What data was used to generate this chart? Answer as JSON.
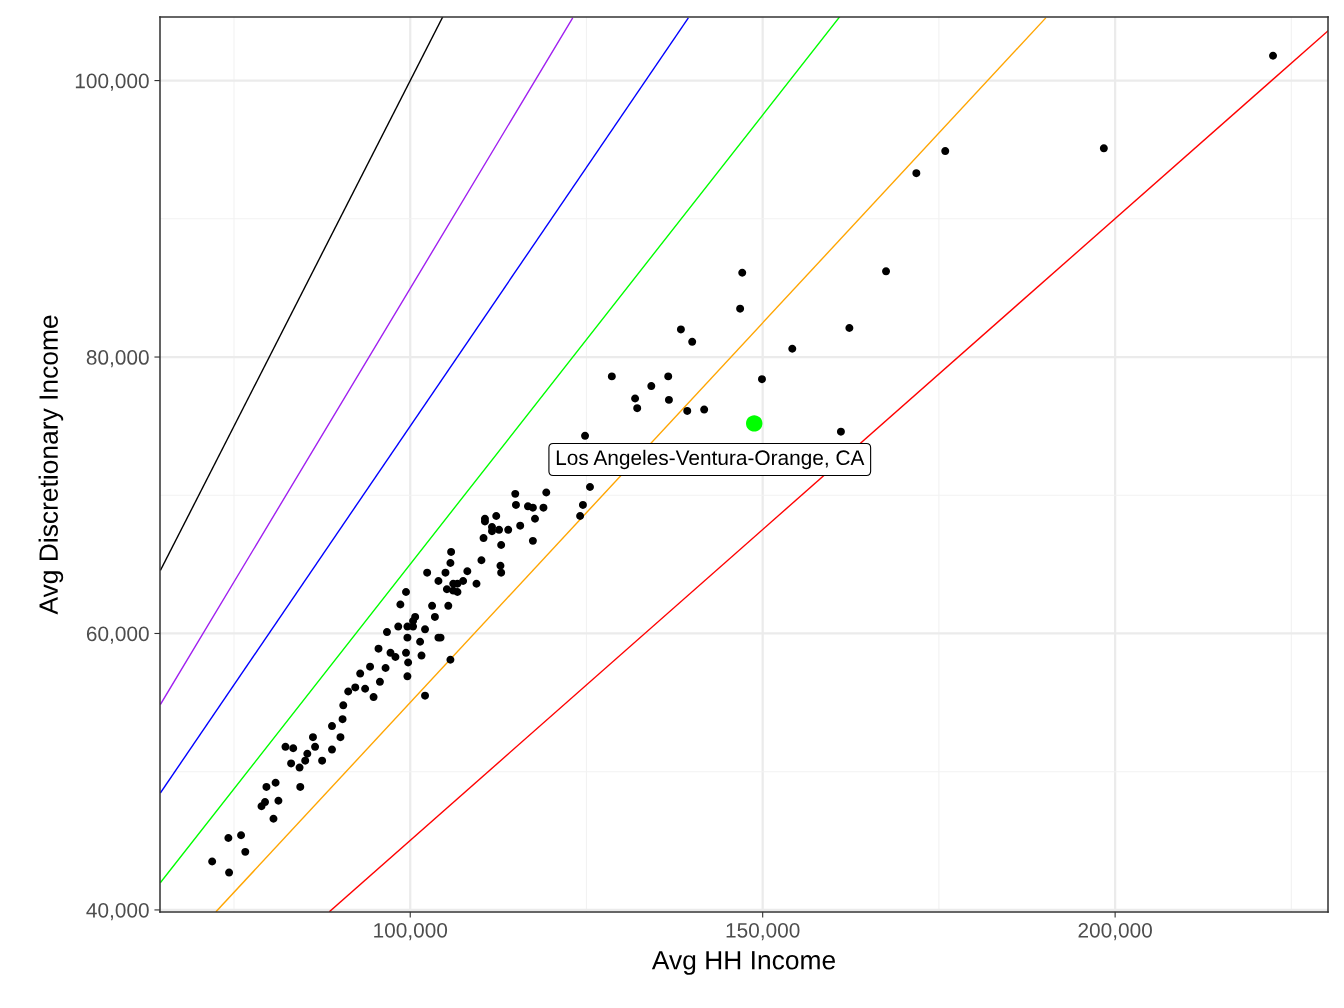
{
  "chart_data": {
    "type": "scatter",
    "xlabel": "Avg HH Income",
    "ylabel": "Avg Discretionary Income",
    "xlim": [
      64500,
      230200
    ],
    "ylim": [
      39850,
      104600
    ],
    "xticks": [
      {
        "value": 100000,
        "label": "100,000"
      },
      {
        "value": 150000,
        "label": "150,000"
      },
      {
        "value": 200000,
        "label": "200,000"
      }
    ],
    "yticks": [
      {
        "value": 40000,
        "label": "40,000"
      },
      {
        "value": 60000,
        "label": "60,000"
      },
      {
        "value": 80000,
        "label": "80,000"
      },
      {
        "value": 100000,
        "label": "100,000"
      }
    ],
    "grid": true,
    "series": [
      {
        "type": "line",
        "color": "#000000",
        "x": [
          64600,
          104600
        ],
        "values": [
          64600,
          104600
        ]
      },
      {
        "type": "line",
        "color": "#a020f0",
        "x": [
          64600,
          123000
        ],
        "values": [
          54900,
          104500
        ]
      },
      {
        "type": "line",
        "color": "#0000ff",
        "x": [
          64600,
          139400
        ],
        "values": [
          48500,
          104500
        ]
      },
      {
        "type": "line",
        "color": "#00ff00",
        "x": [
          64600,
          160900
        ],
        "values": [
          42000,
          104600
        ]
      },
      {
        "type": "line",
        "color": "#ffa500",
        "x": [
          72500,
          190100
        ],
        "values": [
          39900,
          104500
        ]
      },
      {
        "type": "line",
        "color": "#ff0000",
        "x": [
          88600,
          230200
        ],
        "values": [
          39900,
          103600
        ]
      },
      {
        "color": "#000000",
        "marker": "circle",
        "x": [
          71900,
          74300,
          74200,
          76000,
          76600,
          80600,
          81300,
          78900,
          79400,
          79600,
          80900,
          84400,
          82300,
          83400,
          83100,
          84300,
          85100,
          85400,
          86200,
          86500,
          87500,
          88900,
          88900,
          90400,
          90100,
          90500,
          91200,
          92200,
          92900,
          94300,
          93600,
          94800,
          95700,
          96500,
          95500,
          97200,
          97900,
          96700,
          98300,
          99600,
          99400,
          99700,
          99600,
          101400,
          101600,
          102100,
          102100,
          104000,
          100400,
          98600,
          99400,
          100700,
          99600,
          100400,
          103100,
          103500,
          102400,
          104000,
          105200,
          105400,
          104300,
          105700,
          105000,
          105700,
          105800,
          106700,
          107500,
          108100,
          109400,
          110100,
          110400,
          111600,
          110600,
          124800,
          114900,
          115000,
          119300,
          125500,
          124500,
          124100,
          116700,
          117400,
          118900,
          117700,
          115600,
          110600,
          112200,
          111600,
          112600,
          113900,
          112900,
          117400,
          106100,
          112800,
          112900,
          106100,
          106700,
          147100,
          146800,
          138400,
          140000,
          154200,
          162300,
          128600,
          134200,
          136600,
          131900,
          132200,
          136700,
          139300,
          141700,
          149900,
          161100,
          167500,
          171800,
          175900,
          198400,
          222400
        ],
        "values": [
          43500,
          42700,
          45200,
          45400,
          44200,
          46600,
          47900,
          47500,
          47800,
          48900,
          49200,
          48900,
          51800,
          51700,
          50600,
          50300,
          50800,
          51300,
          52500,
          51800,
          50800,
          51600,
          53300,
          53800,
          52500,
          54800,
          55800,
          56100,
          57100,
          57600,
          56000,
          55400,
          56500,
          57500,
          58900,
          58600,
          58300,
          60100,
          60500,
          59700,
          58600,
          57900,
          56900,
          59400,
          58400,
          55500,
          60300,
          59700,
          60900,
          62100,
          63000,
          61200,
          60500,
          60500,
          62000,
          61200,
          64400,
          63800,
          63200,
          62000,
          59700,
          58100,
          64400,
          65100,
          65900,
          63600,
          63800,
          64500,
          63600,
          65300,
          66900,
          67400,
          68100,
          74300,
          70100,
          69300,
          70200,
          70600,
          69300,
          68500,
          69200,
          69100,
          69100,
          68300,
          67800,
          68300,
          68500,
          67700,
          67500,
          67500,
          66400,
          66700,
          63600,
          64900,
          64400,
          63100,
          63000,
          86100,
          83500,
          82000,
          81100,
          80600,
          82100,
          78600,
          77900,
          78600,
          77000,
          76300,
          76900,
          76100,
          76200,
          78400,
          74600,
          86200,
          93300,
          94900,
          95100,
          101800
        ]
      },
      {
        "color": "#00ff00",
        "marker": "circle",
        "x": [
          148800
        ],
        "values": [
          75200
        ]
      }
    ],
    "annotations": [
      {
        "text": "Los Angeles-Ventura-Orange, CA",
        "x": 148800,
        "y": 75200
      }
    ]
  }
}
